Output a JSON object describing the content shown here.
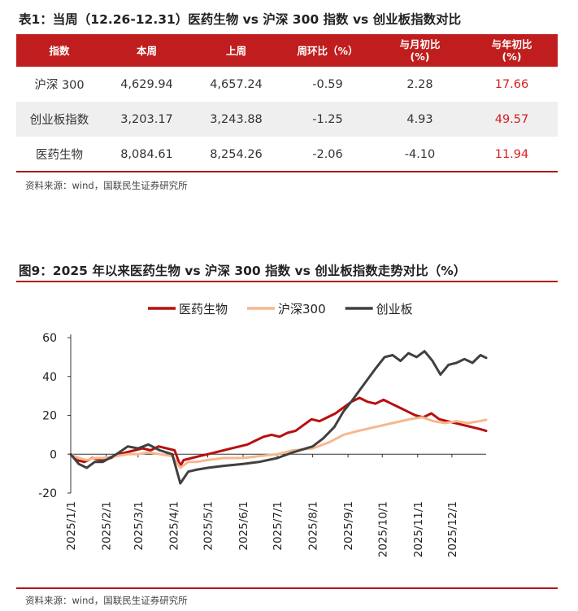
{
  "table": {
    "title": "表1：当周（12.26-12.31）医药生物 vs 沪深 300 指数 vs 创业板指数对比",
    "headers": [
      "指数",
      "本周",
      "上周",
      "周环比（%）",
      "与月初比\n(%)",
      "与年初比\n(%)"
    ],
    "rows": [
      {
        "name": "沪深 300",
        "this_week": "4,629.94",
        "last_week": "4,657.24",
        "wow": "-0.59",
        "mtd": "2.28",
        "ytd": "17.66"
      },
      {
        "name": "创业板指数",
        "this_week": "3,203.17",
        "last_week": "3,243.88",
        "wow": "-1.25",
        "mtd": "4.93",
        "ytd": "49.57"
      },
      {
        "name": "医药生物",
        "this_week": "8,084.61",
        "last_week": "8,254.26",
        "wow": "-2.06",
        "mtd": "-4.10",
        "ytd": "11.94"
      }
    ],
    "source": "资料来源：wind，国联民生证券研究所",
    "ytd_color": "#d71e1e",
    "header_bg": "#c01e1e"
  },
  "chart_title": "图9：2025 年以来医药生物 vs 沪深 300 指数 vs 创业板指数走势对比（%）",
  "chart_source": "资料来源：wind，国联民生证券研究所",
  "chart_data": {
    "type": "line",
    "title": "图9：2025 年以来医药生物 vs 沪深 300 指数 vs 创业板指数走势对比（%）",
    "xlabel": "",
    "ylabel": "",
    "x_ticks": [
      "2025/1/1",
      "2025/2/1",
      "2025/3/1",
      "2025/4/1",
      "2025/5/1",
      "2025/6/1",
      "2025/7/1",
      "2025/8/1",
      "2025/9/1",
      "2025/10/1",
      "2025/11/1",
      "2025/12/1"
    ],
    "y_ticks": [
      -20,
      0,
      20,
      40,
      60
    ],
    "ylim": [
      -20,
      60
    ],
    "xlim": [
      "2025/1/1",
      "2025/12/31"
    ],
    "grid": false,
    "legend": "top",
    "series": [
      {
        "name": "医药生物",
        "color": "#b80f0f",
        "points": [
          [
            "2025/1/1",
            0
          ],
          [
            "2025/1/6",
            -3
          ],
          [
            "2025/1/13",
            -4
          ],
          [
            "2025/1/20",
            -2
          ],
          [
            "2025/1/27",
            -3
          ],
          [
            "2025/2/5",
            -2
          ],
          [
            "2025/2/12",
            0
          ],
          [
            "2025/2/19",
            1
          ],
          [
            "2025/2/26",
            2
          ],
          [
            "2025/3/5",
            3
          ],
          [
            "2025/3/12",
            2
          ],
          [
            "2025/3/19",
            4
          ],
          [
            "2025/3/26",
            3
          ],
          [
            "2025/4/2",
            2
          ],
          [
            "2025/4/7",
            -6
          ],
          [
            "2025/4/10",
            -3
          ],
          [
            "2025/4/17",
            -2
          ],
          [
            "2025/4/24",
            -1
          ],
          [
            "2025/5/1",
            0
          ],
          [
            "2025/5/8",
            1
          ],
          [
            "2025/5/15",
            2
          ],
          [
            "2025/5/22",
            3
          ],
          [
            "2025/5/29",
            4
          ],
          [
            "2025/6/5",
            5
          ],
          [
            "2025/6/12",
            7
          ],
          [
            "2025/6/19",
            9
          ],
          [
            "2025/6/26",
            10
          ],
          [
            "2025/7/3",
            9
          ],
          [
            "2025/7/10",
            11
          ],
          [
            "2025/7/17",
            12
          ],
          [
            "2025/7/24",
            15
          ],
          [
            "2025/7/31",
            18
          ],
          [
            "2025/8/7",
            17
          ],
          [
            "2025/8/14",
            19
          ],
          [
            "2025/8/21",
            21
          ],
          [
            "2025/8/28",
            24
          ],
          [
            "2025/9/4",
            27
          ],
          [
            "2025/9/11",
            29
          ],
          [
            "2025/9/18",
            27
          ],
          [
            "2025/9/25",
            26
          ],
          [
            "2025/10/2",
            28
          ],
          [
            "2025/10/9",
            26
          ],
          [
            "2025/10/16",
            24
          ],
          [
            "2025/10/23",
            22
          ],
          [
            "2025/10/30",
            20
          ],
          [
            "2025/11/6",
            19
          ],
          [
            "2025/11/13",
            21
          ],
          [
            "2025/11/20",
            18
          ],
          [
            "2025/11/27",
            17
          ],
          [
            "2025/12/4",
            16
          ],
          [
            "2025/12/11",
            15
          ],
          [
            "2025/12/18",
            14
          ],
          [
            "2025/12/25",
            13
          ],
          [
            "2025/12/31",
            12
          ]
        ]
      },
      {
        "name": "沪深300",
        "color": "#f5b88f",
        "points": [
          [
            "2025/1/1",
            0
          ],
          [
            "2025/1/8",
            -2
          ],
          [
            "2025/1/15",
            -3
          ],
          [
            "2025/1/22",
            -2
          ],
          [
            "2025/1/29",
            -2
          ],
          [
            "2025/2/10",
            -1
          ],
          [
            "2025/2/20",
            0
          ],
          [
            "2025/3/1",
            0
          ],
          [
            "2025/3/10",
            1
          ],
          [
            "2025/3/20",
            0
          ],
          [
            "2025/3/31",
            -1
          ],
          [
            "2025/4/7",
            -7
          ],
          [
            "2025/4/14",
            -4
          ],
          [
            "2025/4/21",
            -4
          ],
          [
            "2025/5/1",
            -3
          ],
          [
            "2025/5/15",
            -2
          ],
          [
            "2025/6/1",
            -2
          ],
          [
            "2025/6/15",
            -1
          ],
          [
            "2025/7/1",
            0
          ],
          [
            "2025/7/15",
            2
          ],
          [
            "2025/8/1",
            3
          ],
          [
            "2025/8/15",
            6
          ],
          [
            "2025/8/28",
            10
          ],
          [
            "2025/9/10",
            12
          ],
          [
            "2025/9/25",
            14
          ],
          [
            "2025/10/10",
            16
          ],
          [
            "2025/10/25",
            18
          ],
          [
            "2025/11/5",
            19
          ],
          [
            "2025/11/15",
            17
          ],
          [
            "2025/11/25",
            16
          ],
          [
            "2025/12/5",
            17
          ],
          [
            "2025/12/15",
            16
          ],
          [
            "2025/12/25",
            17
          ],
          [
            "2025/12/31",
            17.7
          ]
        ]
      },
      {
        "name": "创业板",
        "color": "#404040",
        "points": [
          [
            "2025/1/1",
            0
          ],
          [
            "2025/1/8",
            -5
          ],
          [
            "2025/1/15",
            -7
          ],
          [
            "2025/1/22",
            -4
          ],
          [
            "2025/1/29",
            -4
          ],
          [
            "2025/2/10",
            0
          ],
          [
            "2025/2/20",
            4
          ],
          [
            "2025/3/1",
            3
          ],
          [
            "2025/3/10",
            5
          ],
          [
            "2025/3/20",
            2
          ],
          [
            "2025/3/31",
            0
          ],
          [
            "2025/4/7",
            -15
          ],
          [
            "2025/4/14",
            -9
          ],
          [
            "2025/4/21",
            -8
          ],
          [
            "2025/5/1",
            -7
          ],
          [
            "2025/5/15",
            -6
          ],
          [
            "2025/6/1",
            -5
          ],
          [
            "2025/6/15",
            -4
          ],
          [
            "2025/7/1",
            -2
          ],
          [
            "2025/7/15",
            1
          ],
          [
            "2025/8/1",
            4
          ],
          [
            "2025/8/10",
            8
          ],
          [
            "2025/8/20",
            14
          ],
          [
            "2025/8/28",
            22
          ],
          [
            "2025/9/5",
            28
          ],
          [
            "2025/9/15",
            36
          ],
          [
            "2025/9/25",
            44
          ],
          [
            "2025/10/3",
            50
          ],
          [
            "2025/10/10",
            51
          ],
          [
            "2025/10/17",
            48
          ],
          [
            "2025/10/24",
            52
          ],
          [
            "2025/10/31",
            50
          ],
          [
            "2025/11/7",
            53
          ],
          [
            "2025/11/14",
            48
          ],
          [
            "2025/11/21",
            41
          ],
          [
            "2025/11/28",
            46
          ],
          [
            "2025/12/5",
            47
          ],
          [
            "2025/12/12",
            49
          ],
          [
            "2025/12/19",
            47
          ],
          [
            "2025/12/26",
            51
          ],
          [
            "2025/12/31",
            49.6
          ]
        ]
      }
    ]
  }
}
